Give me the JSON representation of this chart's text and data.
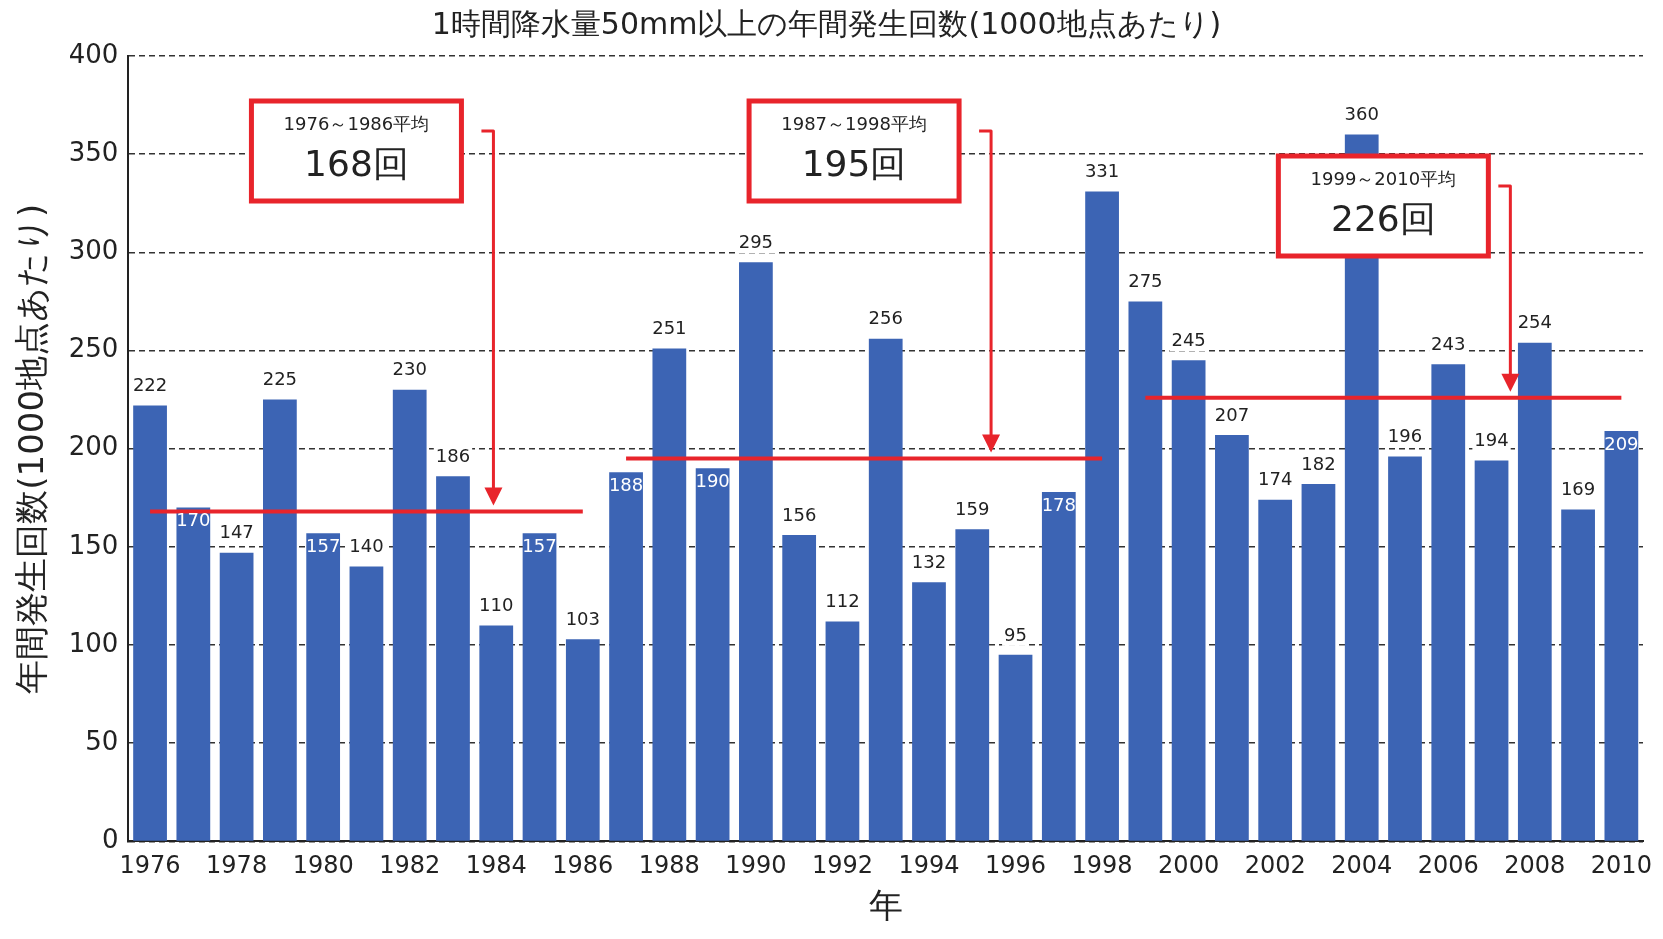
{
  "chart_data": {
    "type": "bar",
    "title": "1時間降水量50mm以上の年間発生回数(1000地点あたり)",
    "xlabel": "年",
    "ylabel": "年間発生回数(1000地点あたり)",
    "categories": [
      "1976",
      null,
      "1978",
      null,
      "1980",
      null,
      "1982",
      null,
      "1984",
      null,
      "1986",
      null,
      "1988",
      null,
      "1990",
      null,
      "1992",
      null,
      "1994",
      null,
      "1996",
      null,
      "1998",
      null,
      "2000",
      null,
      "2002",
      null,
      "2004",
      null,
      "2006",
      null,
      "2008",
      null,
      "2010"
    ],
    "series": [
      {
        "color": "#3c64b4",
        "values": [
          222,
          170,
          147,
          225,
          157,
          140,
          230,
          186,
          110,
          157,
          103,
          188,
          251,
          190,
          295,
          156,
          112,
          256,
          132,
          159,
          95,
          178,
          331,
          275,
          245,
          207,
          174,
          182,
          360,
          196,
          243,
          194,
          254,
          169,
          209
        ],
        "value_labels": [
          "222",
          "170",
          "147",
          "225",
          "157",
          "140",
          "230",
          "186",
          "110",
          "157",
          "103",
          "188",
          "251",
          "190",
          "295",
          "156",
          "112",
          "256",
          "132",
          "159",
          "95",
          "178",
          "331",
          "275",
          "245",
          "207",
          "174",
          "182",
          "360",
          "196",
          "243",
          "194",
          "254",
          "169",
          "209"
        ]
      },
      {
        "type": "line",
        "color": "#e8242b",
        "values": [
          168,
          168,
          168,
          168,
          168,
          168,
          168,
          168,
          168,
          168,
          168,
          null,
          null,
          null,
          null,
          null,
          null,
          null,
          null,
          null,
          null,
          null,
          null,
          null,
          null,
          null,
          null,
          null,
          null,
          null,
          null,
          null,
          null,
          null,
          null
        ]
      },
      {
        "type": "line",
        "color": "#e8242b",
        "values": [
          null,
          null,
          null,
          null,
          null,
          null,
          null,
          null,
          null,
          null,
          null,
          195,
          195,
          195,
          195,
          195,
          195,
          195,
          195,
          195,
          195,
          195,
          195,
          null,
          null,
          null,
          null,
          null,
          null,
          null,
          null,
          null,
          null,
          null,
          null
        ]
      },
      {
        "type": "line",
        "color": "#e8242b",
        "values": [
          null,
          null,
          null,
          null,
          null,
          null,
          null,
          null,
          null,
          null,
          null,
          null,
          null,
          null,
          null,
          null,
          null,
          null,
          null,
          null,
          null,
          null,
          null,
          226,
          226,
          226,
          226,
          226,
          226,
          226,
          226,
          226,
          226,
          226,
          226
        ]
      }
    ],
    "annotations": [
      "1976～1986平均",
      "168回",
      "1987～1998平均",
      "195回",
      "1999～2010平均",
      "226回"
    ],
    "ylim": [
      0,
      400
    ],
    "yticks": [
      0,
      50,
      100,
      150,
      200,
      250,
      300,
      350,
      400
    ],
    "grid": "y",
    "legend": false
  }
}
